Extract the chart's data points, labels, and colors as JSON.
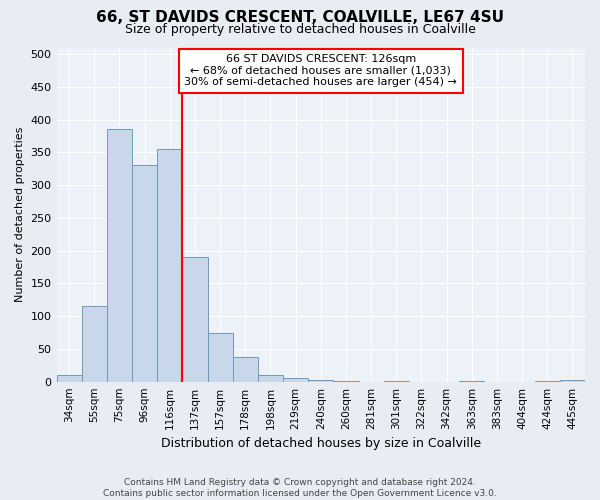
{
  "title1": "66, ST DAVIDS CRESCENT, COALVILLE, LE67 4SU",
  "title2": "Size of property relative to detached houses in Coalville",
  "xlabel": "Distribution of detached houses by size in Coalville",
  "ylabel": "Number of detached properties",
  "footer1": "Contains HM Land Registry data © Crown copyright and database right 2024.",
  "footer2": "Contains public sector information licensed under the Open Government Licence v3.0.",
  "bar_labels": [
    "34sqm",
    "55sqm",
    "75sqm",
    "96sqm",
    "116sqm",
    "137sqm",
    "157sqm",
    "178sqm",
    "198sqm",
    "219sqm",
    "240sqm",
    "260sqm",
    "281sqm",
    "301sqm",
    "322sqm",
    "342sqm",
    "363sqm",
    "383sqm",
    "404sqm",
    "424sqm",
    "445sqm"
  ],
  "bar_values": [
    10,
    115,
    385,
    330,
    355,
    190,
    75,
    37,
    10,
    5,
    3,
    1,
    0,
    1,
    0,
    0,
    1,
    0,
    0,
    1,
    2
  ],
  "bar_color": "#c8d8ea",
  "bar_edge_color": "#7099bb",
  "vline_index": 4,
  "vline_color": "red",
  "annotation_text": "66 ST DAVIDS CRESCENT: 126sqm\n← 68% of detached houses are smaller (1,033)\n30% of semi-detached houses are larger (454) →",
  "annotation_box_color": "white",
  "annotation_box_edge": "red",
  "ylim": [
    0,
    510
  ],
  "yticks": [
    0,
    50,
    100,
    150,
    200,
    250,
    300,
    350,
    400,
    450,
    500
  ],
  "bg_color": "#e8edf4",
  "plot_bg_color": "#edf1f8",
  "title1_fontsize": 11,
  "title2_fontsize": 9,
  "xlabel_fontsize": 9,
  "ylabel_fontsize": 8,
  "tick_fontsize": 7.5,
  "ytick_fontsize": 8,
  "footer_fontsize": 6.5,
  "ann_fontsize": 8
}
